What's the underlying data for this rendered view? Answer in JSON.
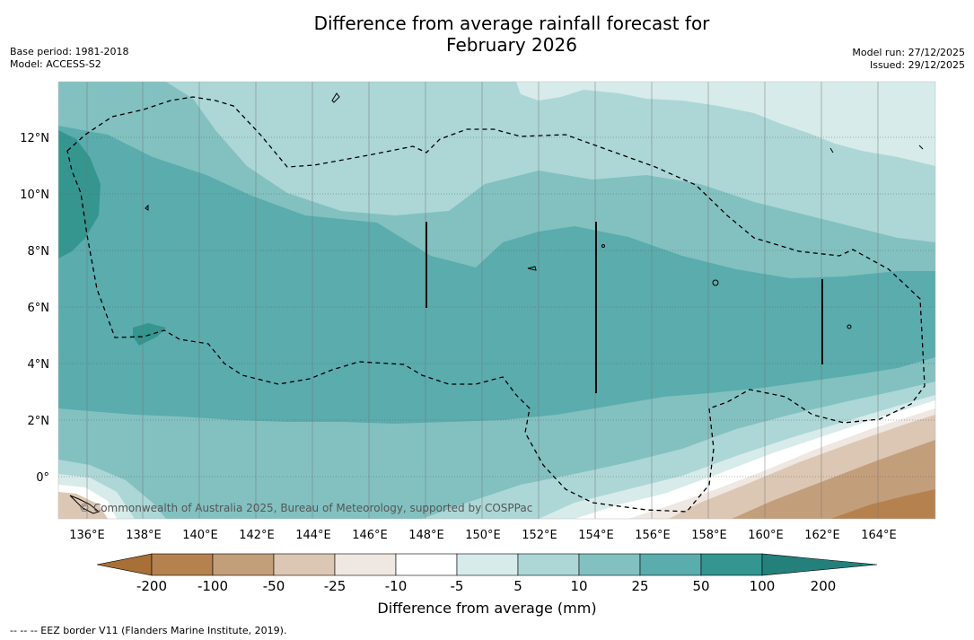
{
  "title_line1": "Difference from average rainfall forecast for",
  "title_line2": "February 2026",
  "base_period": "Base period: 1981-2018",
  "model": "Model: ACCESS-S2",
  "model_run": "Model run: 27/12/2025",
  "issued": "Issued: 29/12/2025",
  "copyright": "© Commonwealth of Australia 2025, Bureau of Meteorology, supported by COSPPac",
  "lon_ticks": [
    "136°E",
    "138°E",
    "140°E",
    "142°E",
    "144°E",
    "146°E",
    "148°E",
    "150°E",
    "152°E",
    "154°E",
    "156°E",
    "158°E",
    "160°E",
    "162°E",
    "164°E"
  ],
  "lat_ticks": [
    "12°N",
    "10°N",
    "8°N",
    "6°N",
    "4°N",
    "2°N",
    "0°"
  ],
  "colorbar": {
    "title": "Difference from average (mm)",
    "labels": [
      "-200",
      "-100",
      "-50",
      "-25",
      "-10",
      "-5",
      "5",
      "10",
      "25",
      "50",
      "100",
      "200"
    ],
    "colors": [
      "#a86f37",
      "#b5824f",
      "#c39e7b",
      "#dcc7b4",
      "#efe7e1",
      "#ffffff",
      "#d7ebea",
      "#acd7d6",
      "#82c1c0",
      "#5aacad",
      "#35958f",
      "#23807b"
    ]
  },
  "footnote": "--  --  -- EEZ border V11 (Flanders Marine Institute, 2019)."
}
